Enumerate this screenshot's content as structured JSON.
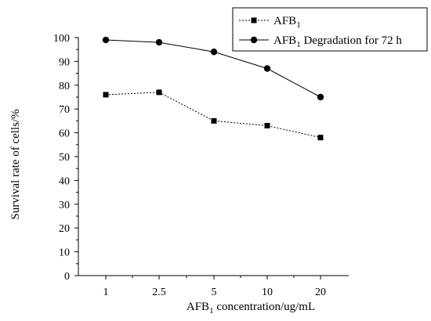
{
  "chart_data": {
    "type": "line",
    "categories": [
      "1",
      "2.5",
      "5",
      "10",
      "20"
    ],
    "series": [
      {
        "name": "AFB1",
        "name_parts": {
          "base": "AFB",
          "sub": "1",
          "rest": ""
        },
        "values": [
          76,
          77,
          65,
          63,
          58
        ],
        "line_style": "dotted",
        "marker": "square",
        "color": "#000000"
      },
      {
        "name": "AFB1 Degradation for 72 h",
        "name_parts": {
          "base": "AFB",
          "sub": "1",
          "rest": " Degradation for 72 h"
        },
        "values": [
          99,
          98,
          94,
          87,
          75
        ],
        "line_style": "solid",
        "marker": "circle",
        "color": "#000000"
      }
    ],
    "xlabel": "AFB1 concentration/ug/mL",
    "xlabel_parts": {
      "base": "AFB",
      "sub": "1",
      "rest": " concentration/ug/mL"
    },
    "ylabel": "Survival rate of cells/%",
    "ylim": [
      0,
      100
    ],
    "yticks": [
      0,
      10,
      20,
      30,
      40,
      50,
      60,
      70,
      80,
      90,
      100
    ],
    "grid": false,
    "legend": "top-right"
  }
}
